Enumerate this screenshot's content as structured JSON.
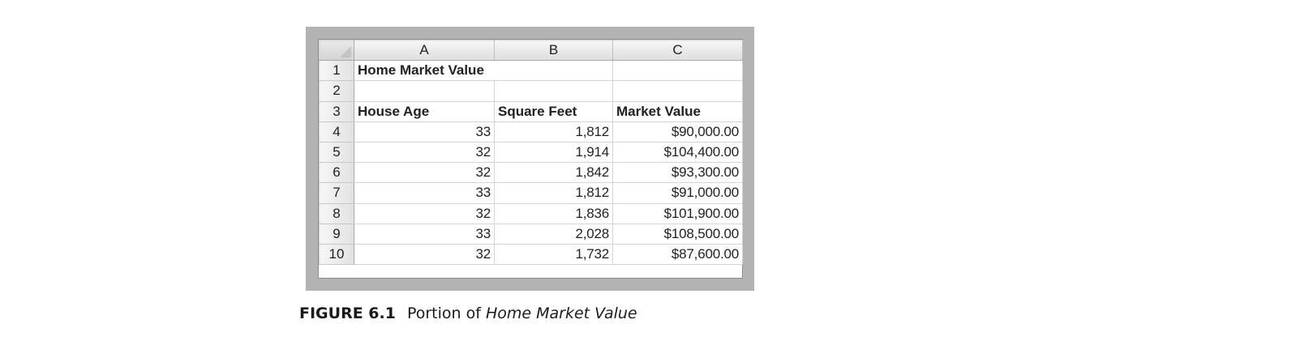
{
  "spreadsheet": {
    "column_headers": [
      "A",
      "B",
      "C"
    ],
    "row_numbers": [
      "1",
      "2",
      "3",
      "4",
      "5",
      "6",
      "7",
      "8",
      "9",
      "10"
    ],
    "title": "Home Market Value",
    "headers": [
      "House Age",
      "Square Feet",
      "Market Value"
    ],
    "rows": [
      [
        "33",
        "1,812",
        "$90,000.00"
      ],
      [
        "32",
        "1,914",
        "$104,400.00"
      ],
      [
        "32",
        "1,842",
        "$93,300.00"
      ],
      [
        "33",
        "1,812",
        "$91,000.00"
      ],
      [
        "32",
        "1,836",
        "$101,900.00"
      ],
      [
        "33",
        "2,028",
        "$108,500.00"
      ],
      [
        "32",
        "1,732",
        "$87,600.00"
      ]
    ]
  },
  "caption": {
    "label": "FIGURE 6.1",
    "text": "Portion of ",
    "italic": "Home Market Value"
  }
}
